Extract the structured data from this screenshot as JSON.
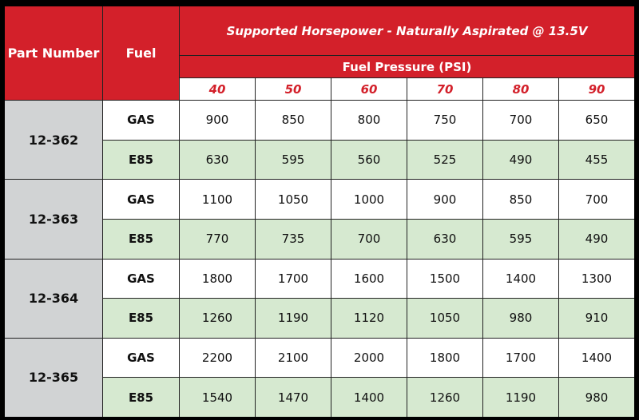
{
  "header": {
    "part_number": "Part Number",
    "fuel": "Fuel",
    "title": "Supported Horsepower - Naturally Aspirated @ 13.5V",
    "subtitle": "Fuel Pressure (PSI)",
    "pressures": [
      "40",
      "50",
      "60",
      "70",
      "80",
      "90"
    ]
  },
  "colors": {
    "header_red": "#d3202a",
    "part_gray": "#d1d3d4",
    "e85_green": "#d6e9d0",
    "background": "#000000"
  },
  "parts": [
    {
      "part": "12-362",
      "rows": [
        {
          "fuel": "GAS",
          "values": [
            "900",
            "850",
            "800",
            "750",
            "700",
            "650"
          ]
        },
        {
          "fuel": "E85",
          "values": [
            "630",
            "595",
            "560",
            "525",
            "490",
            "455"
          ]
        }
      ]
    },
    {
      "part": "12-363",
      "rows": [
        {
          "fuel": "GAS",
          "values": [
            "1100",
            "1050",
            "1000",
            "900",
            "850",
            "700"
          ]
        },
        {
          "fuel": "E85",
          "values": [
            "770",
            "735",
            "700",
            "630",
            "595",
            "490"
          ]
        }
      ]
    },
    {
      "part": "12-364",
      "rows": [
        {
          "fuel": "GAS",
          "values": [
            "1800",
            "1700",
            "1600",
            "1500",
            "1400",
            "1300"
          ]
        },
        {
          "fuel": "E85",
          "values": [
            "1260",
            "1190",
            "1120",
            "1050",
            "980",
            "910"
          ]
        }
      ]
    },
    {
      "part": "12-365",
      "rows": [
        {
          "fuel": "GAS",
          "values": [
            "2200",
            "2100",
            "2000",
            "1800",
            "1700",
            "1400"
          ]
        },
        {
          "fuel": "E85",
          "values": [
            "1540",
            "1470",
            "1400",
            "1260",
            "1190",
            "980"
          ]
        }
      ]
    }
  ]
}
